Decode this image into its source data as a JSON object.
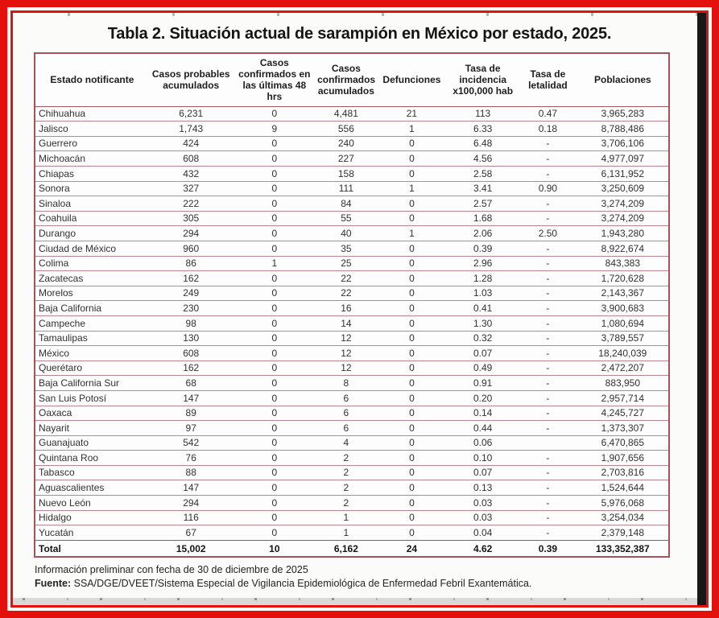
{
  "title": "Tabla 2. Situación actual de sarampión en México por estado, 2025.",
  "table": {
    "columns": [
      "Estado notificante",
      "Casos probables acumulados",
      "Casos confirmados en las últimas 48 hrs",
      "Casos confirmados acumulados",
      "Defunciones",
      "Tasa de incidencia x100,000 hab",
      "Tasa de letalidad",
      "Poblaciones"
    ],
    "rows": [
      [
        "Chihuahua",
        "6,231",
        "0",
        "4,481",
        "21",
        "113",
        "0.47",
        "3,965,283"
      ],
      [
        "Jalisco",
        "1,743",
        "9",
        "556",
        "1",
        "6.33",
        "0.18",
        "8,788,486"
      ],
      [
        "Guerrero",
        "424",
        "0",
        "240",
        "0",
        "6.48",
        "-",
        "3,706,106"
      ],
      [
        "Michoacán",
        "608",
        "0",
        "227",
        "0",
        "4.56",
        "-",
        "4,977,097"
      ],
      [
        "Chiapas",
        "432",
        "0",
        "158",
        "0",
        "2.58",
        "-",
        "6,131,952"
      ],
      [
        "Sonora",
        "327",
        "0",
        "111",
        "1",
        "3.41",
        "0.90",
        "3,250,609"
      ],
      [
        "Sinaloa",
        "222",
        "0",
        "84",
        "0",
        "2.57",
        "-",
        "3,274,209"
      ],
      [
        "Coahuila",
        "305",
        "0",
        "55",
        "0",
        "1.68",
        "-",
        "3,274,209"
      ],
      [
        "Durango",
        "294",
        "0",
        "40",
        "1",
        "2.06",
        "2.50",
        "1,943,280"
      ],
      [
        "Ciudad de México",
        "960",
        "0",
        "35",
        "0",
        "0.39",
        "-",
        "8,922,674"
      ],
      [
        "Colima",
        "86",
        "1",
        "25",
        "0",
        "2.96",
        "-",
        "843,383"
      ],
      [
        "Zacatecas",
        "162",
        "0",
        "22",
        "0",
        "1.28",
        "-",
        "1,720,628"
      ],
      [
        "Morelos",
        "249",
        "0",
        "22",
        "0",
        "1.03",
        "-",
        "2,143,367"
      ],
      [
        "Baja California",
        "230",
        "0",
        "16",
        "0",
        "0.41",
        "-",
        "3,900,683"
      ],
      [
        "Campeche",
        "98",
        "0",
        "14",
        "0",
        "1.30",
        "-",
        "1,080,694"
      ],
      [
        "Tamaulipas",
        "130",
        "0",
        "12",
        "0",
        "0.32",
        "-",
        "3,789,557"
      ],
      [
        "México",
        "608",
        "0",
        "12",
        "0",
        "0.07",
        "-",
        "18,240,039"
      ],
      [
        "Querétaro",
        "162",
        "0",
        "12",
        "0",
        "0.49",
        "-",
        "2,472,207"
      ],
      [
        "Baja California Sur",
        "68",
        "0",
        "8",
        "0",
        "0.91",
        "-",
        "883,950"
      ],
      [
        "San Luis Potosí",
        "147",
        "0",
        "6",
        "0",
        "0.20",
        "-",
        "2,957,714"
      ],
      [
        "Oaxaca",
        "89",
        "0",
        "6",
        "0",
        "0.14",
        "-",
        "4,245,727"
      ],
      [
        "Nayarit",
        "97",
        "0",
        "6",
        "0",
        "0.44",
        "-",
        "1,373,307"
      ],
      [
        "Guanajuato",
        "542",
        "0",
        "4",
        "0",
        "0.06",
        "",
        "6,470,865"
      ],
      [
        "Quintana Roo",
        "76",
        "0",
        "2",
        "0",
        "0.10",
        "-",
        "1,907,656"
      ],
      [
        "Tabasco",
        "88",
        "0",
        "2",
        "0",
        "0.07",
        "-",
        "2,703,816"
      ],
      [
        "Aguascalientes",
        "147",
        "0",
        "2",
        "0",
        "0.13",
        "-",
        "1,524,644"
      ],
      [
        "Nuevo León",
        "294",
        "0",
        "2",
        "0",
        "0.03",
        "-",
        "5,976,068"
      ],
      [
        "Hidalgo",
        "116",
        "0",
        "1",
        "0",
        "0.03",
        "-",
        "3,254,034"
      ],
      [
        "Yucatán",
        "67",
        "0",
        "1",
        "0",
        "0.04",
        "-",
        "2,379,148"
      ]
    ],
    "total": [
      "Total",
      "15,002",
      "10",
      "6,162",
      "24",
      "4.62",
      "0.39",
      "133,352,387"
    ]
  },
  "footer": {
    "note": "Información preliminar con fecha de 30 de diciembre de 2025",
    "source_label": "Fuente:",
    "source_text": " SSA/DGE/DVEET/Sistema Especial de Vigilancia Epidemiológica de Enfermedad Febril Exantemática."
  },
  "colors": {
    "frame_red": "#e4100c",
    "table_border": "#a7515c",
    "row_line": "#c2848c",
    "text": "#313131"
  }
}
